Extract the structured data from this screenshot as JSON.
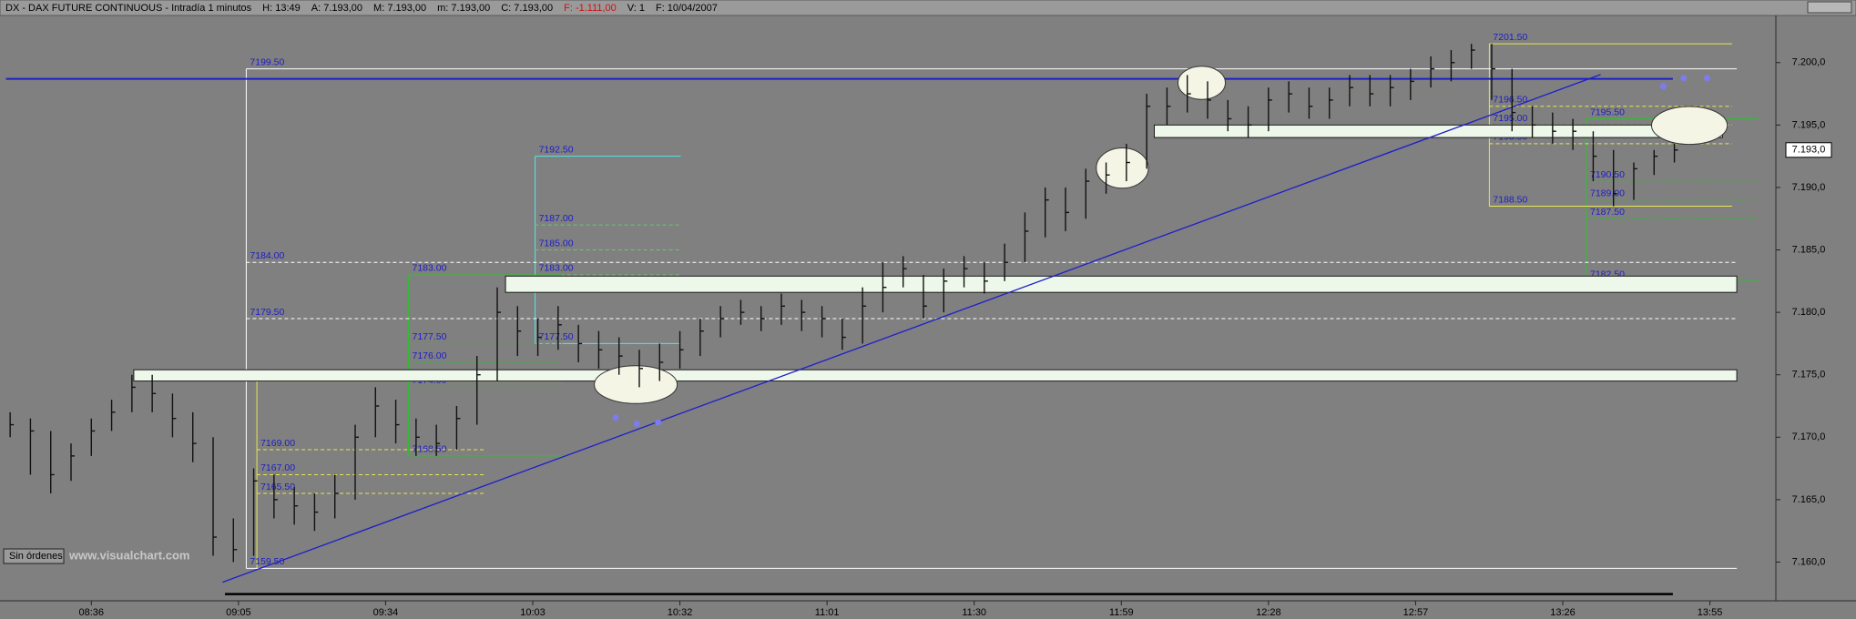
{
  "chart_data": {
    "type": "ohlc",
    "title": "DX - DAX FUTURE CONTINUOUS - Intradía 1 minutos",
    "header_fields": [
      {
        "text": "H: 13:49",
        "color": "#000000"
      },
      {
        "text": "A: 7.193,00",
        "color": "#000000"
      },
      {
        "text": "M: 7.193,00",
        "color": "#000000"
      },
      {
        "text": "m: 7.193,00",
        "color": "#000000"
      },
      {
        "text": "C: 7.193,00",
        "color": "#000000"
      },
      {
        "text": "F: -1.111,00",
        "color": "#d01010"
      },
      {
        "text": "V: 1",
        "color": "#000000"
      },
      {
        "text": "F: 10/04/2007",
        "color": "#000000"
      }
    ],
    "status": "Sin órdenes",
    "watermark": "www.visualchart.com",
    "x": [
      "08:20",
      "08:24",
      "08:28",
      "08:32",
      "08:36",
      "08:40",
      "08:44",
      "08:48",
      "08:52",
      "08:56",
      "09:00",
      "09:04",
      "09:08",
      "09:12",
      "09:16",
      "09:20",
      "09:24",
      "09:28",
      "09:32",
      "09:36",
      "09:40",
      "09:44",
      "09:48",
      "09:52",
      "09:56",
      "10:00",
      "10:04",
      "10:08",
      "10:12",
      "10:16",
      "10:20",
      "10:24",
      "10:28",
      "10:32",
      "10:36",
      "10:40",
      "10:44",
      "10:48",
      "10:52",
      "10:56",
      "11:00",
      "11:04",
      "11:08",
      "11:12",
      "11:16",
      "11:20",
      "11:24",
      "11:28",
      "11:32",
      "11:36",
      "11:40",
      "11:44",
      "11:48",
      "11:52",
      "11:56",
      "12:00",
      "12:04",
      "12:08",
      "12:12",
      "12:16",
      "12:20",
      "12:24",
      "12:28",
      "12:32",
      "12:36",
      "12:40",
      "12:44",
      "12:48",
      "12:52",
      "12:56",
      "13:00",
      "13:04",
      "13:08",
      "13:12",
      "13:16",
      "13:20",
      "13:24",
      "13:28",
      "13:32",
      "13:36",
      "13:40",
      "13:44",
      "13:48"
    ],
    "high": [
      7172,
      7171.5,
      7170.5,
      7169.5,
      7171.5,
      7173,
      7175,
      7175,
      7173.5,
      7172,
      7170,
      7163.5,
      7167.5,
      7167,
      7166,
      7165.5,
      7167,
      7171,
      7174,
      7173,
      7171.5,
      7171,
      7172.5,
      7176.5,
      7182,
      7180.5,
      7179.5,
      7180.5,
      7179,
      7178.5,
      7178,
      7177,
      7177.5,
      7178.5,
      7179.5,
      7180.5,
      7181,
      7180.5,
      7181.5,
      7181,
      7180.5,
      7179.5,
      7182,
      7184,
      7184.5,
      7183,
      7183.5,
      7184.5,
      7184,
      7185.5,
      7188,
      7190,
      7190,
      7191.5,
      7192,
      7193.5,
      7197.5,
      7198,
      7199,
      7198.5,
      7197,
      7196.5,
      7198,
      7198.5,
      7198,
      7198,
      7199,
      7199,
      7199,
      7199.5,
      7200.5,
      7201,
      7201.5,
      7201.5,
      7199.5,
      7196.5,
      7196,
      7195.5,
      7194.5,
      7193,
      7192,
      7193,
      7193.5
    ],
    "low": [
      7170,
      7167,
      7165.5,
      7166.5,
      7168.5,
      7170.5,
      7172,
      7172,
      7170,
      7168,
      7160.5,
      7160,
      7160.5,
      7163.5,
      7163,
      7162.5,
      7163.5,
      7165,
      7170,
      7169.5,
      7168.5,
      7168.5,
      7169,
      7171,
      7174.5,
      7176.5,
      7176.5,
      7177,
      7176,
      7175.5,
      7175,
      7174,
      7174.5,
      7175.5,
      7176.5,
      7178,
      7179,
      7178.5,
      7179,
      7178.5,
      7178,
      7177,
      7177.5,
      7180,
      7182,
      7179.5,
      7180,
      7182,
      7181.5,
      7182.5,
      7184,
      7186,
      7186.5,
      7187.5,
      7189.5,
      7190.5,
      7191.5,
      7195,
      7196,
      7195.5,
      7194.5,
      7194,
      7194.5,
      7196,
      7195.5,
      7195.5,
      7196.5,
      7196.5,
      7196.5,
      7197,
      7198,
      7198.5,
      7199.5,
      7197,
      7194.5,
      7194,
      7193.5,
      7193,
      7190.5,
      7188.5,
      7189,
      7191,
      7192
    ],
    "close": [
      7171,
      7170.5,
      7167,
      7168.5,
      7170.5,
      7172,
      7174,
      7173.5,
      7171.5,
      7169.5,
      7162,
      7161,
      7166.5,
      7165,
      7164.5,
      7164,
      7165.5,
      7170,
      7172.5,
      7171,
      7170,
      7169.5,
      7171.5,
      7175,
      7180,
      7178.5,
      7178,
      7179,
      7177.5,
      7177,
      7176.5,
      7175.5,
      7176,
      7177,
      7178.5,
      7179.5,
      7180,
      7179.5,
      7180.5,
      7180,
      7179.5,
      7178,
      7180.5,
      7182,
      7183.5,
      7180.5,
      7182.5,
      7183.5,
      7182.5,
      7184,
      7186.5,
      7189,
      7188,
      7190.5,
      7191,
      7192,
      7196.5,
      7196.5,
      7197.5,
      7197,
      7195.5,
      7195,
      7197,
      7197.5,
      7196.5,
      7197,
      7198,
      7197.5,
      7198,
      7198.5,
      7199.5,
      7200,
      7201,
      7199.5,
      7196,
      7195,
      7194.5,
      7194.5,
      7192.5,
      7189.5,
      7191.5,
      7192.5,
      7193
    ],
    "color": "#111111",
    "xlim": [
      "08:18",
      "14:08"
    ],
    "xticks": [
      "08:36",
      "09:05",
      "09:34",
      "10:03",
      "10:32",
      "11:01",
      "11:30",
      "11:59",
      "12:28",
      "12:57",
      "13:26",
      "13:55"
    ],
    "ylim": [
      7156.9,
      7203.7
    ],
    "yticks": [
      {
        "value": 7200,
        "label": "7.200,0"
      },
      {
        "value": 7195,
        "label": "7.195,0"
      },
      {
        "value": 7190,
        "label": "7.190,0"
      },
      {
        "value": 7185,
        "label": "7.185,0"
      },
      {
        "value": 7180,
        "label": "7.180,0"
      },
      {
        "value": 7175,
        "label": "7.175,0"
      },
      {
        "value": 7170,
        "label": "7.170,0"
      },
      {
        "value": 7165,
        "label": "7.165,0"
      },
      {
        "value": 7160,
        "label": "7.160,0"
      }
    ],
    "last": {
      "value": 7193,
      "label": "7.193,0"
    },
    "hline": 7198.7,
    "zones": [
      [
        7174.5,
        7175.4
      ],
      [
        7181.6,
        7182.9
      ],
      [
        7194.0,
        7195.0
      ]
    ],
    "levels": [
      {
        "value": 7199.5,
        "label": "7199.50"
      },
      {
        "value": 7184,
        "label": "7184.00"
      },
      {
        "value": 7179.5,
        "label": "7179.50"
      },
      {
        "value": 7159.5,
        "label": "7159.50"
      },
      {
        "value": 7192.5,
        "label": "7192.50"
      },
      {
        "value": 7187,
        "label": "7187.00"
      },
      {
        "value": 7185,
        "label": "7185.00"
      },
      {
        "value": 7183,
        "label": "7183.00"
      },
      {
        "value": 7177.5,
        "label": "7177.50"
      },
      {
        "value": 7183,
        "label": "7183.00"
      },
      {
        "value": 7177.5,
        "label": "7177.50"
      },
      {
        "value": 7176,
        "label": "7176.00"
      },
      {
        "value": 7174,
        "label": "7174.00"
      },
      {
        "value": 7168.5,
        "label": "7168.50"
      },
      {
        "value": 7174.5,
        "label": "7174.50"
      },
      {
        "value": 7169,
        "label": "7169.00"
      },
      {
        "value": 7167,
        "label": "7167.00"
      },
      {
        "value": 7165.5,
        "label": "7165.50"
      },
      {
        "value": 7201.5,
        "label": "7201.50"
      },
      {
        "value": 7196.5,
        "label": "7196.50"
      },
      {
        "value": 7195,
        "label": "7195.00"
      },
      {
        "value": 7193.5,
        "label": "7193.50"
      },
      {
        "value": 7188.5,
        "label": "7188.50"
      },
      {
        "value": 7195.5,
        "label": "7195.50"
      },
      {
        "value": 7190.5,
        "label": "7190.50"
      },
      {
        "value": 7189,
        "label": "7189.00"
      },
      {
        "value": 7187.5,
        "label": "7187.50"
      },
      {
        "value": 7182.5,
        "label": "7182.50"
      }
    ]
  }
}
